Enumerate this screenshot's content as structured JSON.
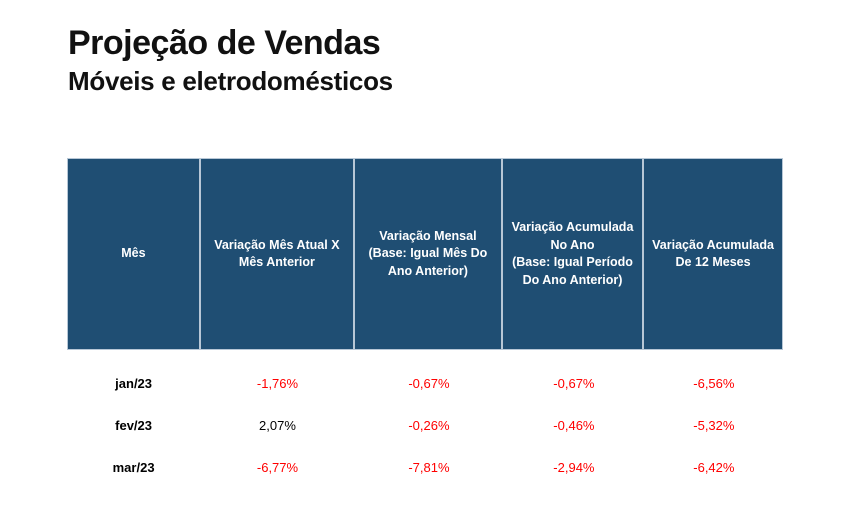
{
  "page": {
    "title": "Projeção de Vendas",
    "subtitle": "Móveis e eletrodomésticos"
  },
  "colors": {
    "header_background": "#1f4e73",
    "header_text": "#ffffff",
    "cell_divider": "#b7c7d6",
    "negative_value": "#ff0000",
    "positive_value": "#000000",
    "page_background": "#ffffff"
  },
  "table": {
    "columns": [
      "Mês",
      "Variação Mês Atual X\nMês Anterior",
      "Variação Mensal\n(Base: Igual Mês Do\nAno Anterior)",
      "Variação Acumulada\nNo Ano\n(Base: Igual Período\nDo Ano Anterior)",
      "Variação Acumulada\nDe 12 Meses"
    ],
    "rows": [
      {
        "month": "jan/23",
        "values": [
          {
            "text": "-1,76%",
            "tone": "negative"
          },
          {
            "text": "-0,67%",
            "tone": "negative"
          },
          {
            "text": "-0,67%",
            "tone": "negative"
          },
          {
            "text": "-6,56%",
            "tone": "negative"
          }
        ]
      },
      {
        "month": "fev/23",
        "values": [
          {
            "text": "2,07%",
            "tone": "positive"
          },
          {
            "text": "-0,26%",
            "tone": "negative"
          },
          {
            "text": "-0,46%",
            "tone": "negative"
          },
          {
            "text": "-5,32%",
            "tone": "negative"
          }
        ]
      },
      {
        "month": "mar/23",
        "values": [
          {
            "text": "-6,77%",
            "tone": "negative"
          },
          {
            "text": "-7,81%",
            "tone": "negative"
          },
          {
            "text": "-2,94%",
            "tone": "negative"
          },
          {
            "text": "-6,42%",
            "tone": "negative"
          }
        ]
      }
    ]
  },
  "chart_data": {
    "type": "table",
    "title": "Projeção de Vendas",
    "subtitle": "Móveis e eletrodomésticos",
    "unit": "%",
    "columns": [
      "Mês",
      "Variação Mês Atual X Mês Anterior",
      "Variação Mensal (Base: Igual Mês Do Ano Anterior)",
      "Variação Acumulada No Ano (Base: Igual Período Do Ano Anterior)",
      "Variação Acumulada De 12 Meses"
    ],
    "rows": [
      [
        "jan/23",
        -1.76,
        -0.67,
        -0.67,
        -6.56
      ],
      [
        "fev/23",
        2.07,
        -0.26,
        -0.46,
        -5.32
      ],
      [
        "mar/23",
        -6.77,
        -7.81,
        -2.94,
        -6.42
      ]
    ]
  }
}
